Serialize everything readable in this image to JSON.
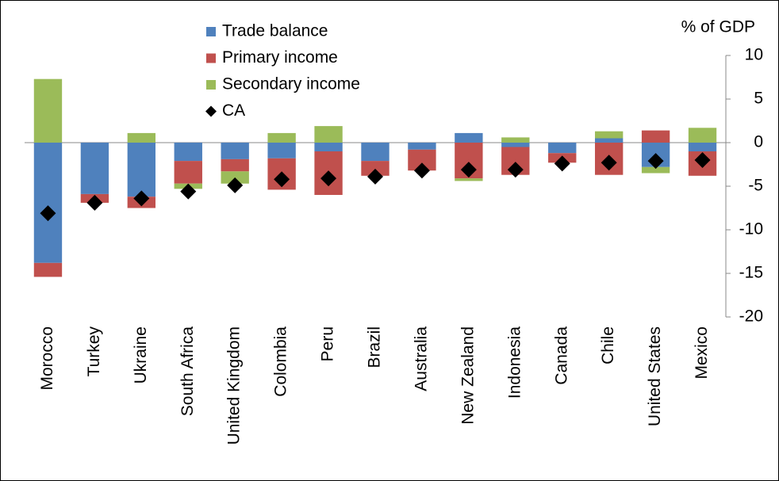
{
  "chart_data": {
    "type": "stacked-bar",
    "y_axis_label": "% of GDP",
    "categories": [
      "Morocco",
      "Turkey",
      "Ukraine",
      "South Africa",
      "United Kingdom",
      "Colombia",
      "Peru",
      "Brazil",
      "Australia",
      "New Zealand",
      "Indonesia",
      "Canada",
      "Chile",
      "United States",
      "Mexico"
    ],
    "series": [
      {
        "name": "Trade balance",
        "color": "#4f81bd",
        "values": [
          -13.8,
          -5.9,
          -6.2,
          -2.1,
          -1.9,
          -1.8,
          -1.0,
          -2.1,
          -0.8,
          1.1,
          -0.5,
          -1.2,
          0.5,
          -2.8,
          -1.0
        ]
      },
      {
        "name": "Primary income",
        "color": "#c0504d",
        "values": [
          -1.6,
          -1.0,
          -1.3,
          -2.6,
          -1.4,
          -3.6,
          -5.0,
          -1.7,
          -2.4,
          -4.1,
          -3.2,
          -1.1,
          -3.7,
          1.4,
          -2.8
        ]
      },
      {
        "name": "Secondary income",
        "color": "#9bbb59",
        "values": [
          7.3,
          0,
          1.1,
          -0.6,
          -1.4,
          1.1,
          1.9,
          0,
          0,
          -0.3,
          0.6,
          0,
          0.8,
          -0.7,
          1.7
        ]
      },
      {
        "name": "CA",
        "color": "#000000",
        "kind": "marker",
        "values": [
          -8.1,
          -6.9,
          -6.4,
          -5.6,
          -4.9,
          -4.2,
          -4.1,
          -3.9,
          -3.2,
          -3.1,
          -3.1,
          -2.4,
          -2.3,
          -2.1,
          -2.0
        ]
      }
    ],
    "ylim": [
      -20,
      10
    ],
    "yticks": [
      10,
      5,
      0,
      -5,
      -10,
      -15,
      -20
    ],
    "y_axis_side": "right"
  }
}
